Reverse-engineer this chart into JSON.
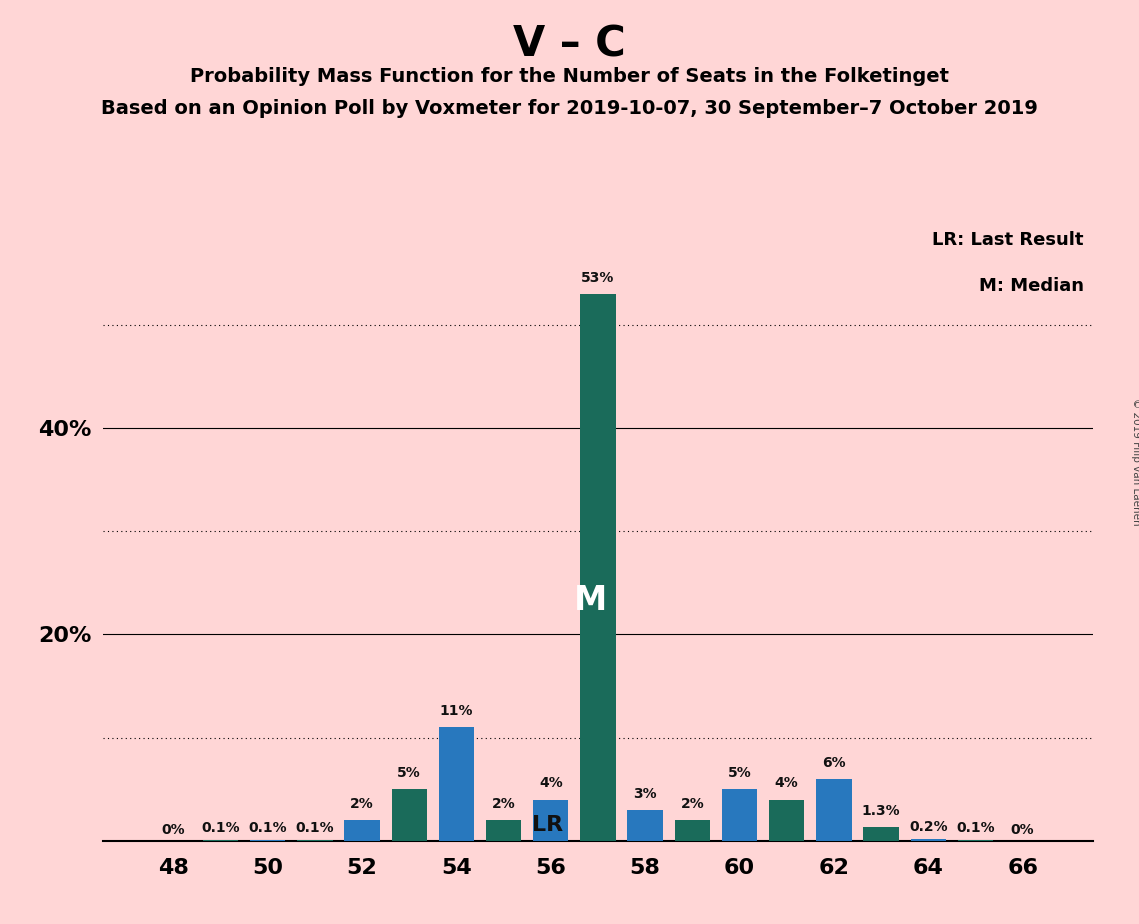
{
  "title": "V – C",
  "subtitle1": "Probability Mass Function for the Number of Seats in the Folketinget",
  "subtitle2": "Based on an Opinion Poll by Voxmeter for 2019-10-07, 30 September–7 October 2019",
  "copyright": "© 2019 Filip van Laenen",
  "seats": [
    48,
    49,
    50,
    51,
    52,
    53,
    54,
    55,
    56,
    57,
    58,
    59,
    60,
    61,
    62,
    63,
    64,
    65,
    66
  ],
  "values": [
    0.0,
    0.1,
    0.1,
    0.1,
    2.0,
    5.0,
    11.0,
    2.0,
    4.0,
    53.0,
    3.0,
    2.0,
    5.0,
    4.0,
    6.0,
    1.3,
    0.2,
    0.1,
    0.0
  ],
  "labels": [
    "0%",
    "0.1%",
    "0.1%",
    "0.1%",
    "2%",
    "5%",
    "11%",
    "2%",
    "4%",
    "53%",
    "3%",
    "2%",
    "5%",
    "4%",
    "6%",
    "1.3%",
    "0.2%",
    "0.1%",
    "0%"
  ],
  "background_color": "#FFD6D6",
  "blue_color": "#2878BE",
  "teal_color": "#1A6B5A",
  "lr_seat": 55,
  "median_seat": 57,
  "xlabel_ticks": [
    48,
    50,
    52,
    54,
    56,
    58,
    60,
    62,
    64,
    66
  ],
  "dotted_lines": [
    10,
    30,
    50
  ],
  "solid_lines": [
    20,
    40
  ],
  "ylim_max": 60,
  "bar_width": 0.75
}
